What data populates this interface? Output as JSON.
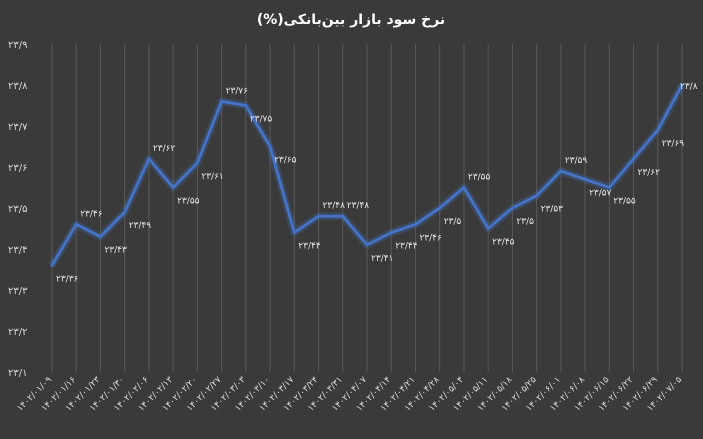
{
  "chart_data": {
    "type": "line",
    "title": "نرخ سود بازار بین‌بانکی(%)",
    "xlabel": "",
    "ylabel": "",
    "ylim": [
      23.1,
      23.9
    ],
    "yticks": [
      "۲۳/۹",
      "۲۳/۸",
      "۲۳/۷",
      "۲۳/۶",
      "۲۳/۵",
      "۲۳/۴",
      "۲۳/۳",
      "۲۳/۲",
      "۲۳/۱"
    ],
    "ytick_values": [
      23.9,
      23.8,
      23.7,
      23.6,
      23.5,
      23.4,
      23.3,
      23.2,
      23.1
    ],
    "grid": "vertical",
    "line_color": "#4472c4",
    "categories": [
      "۱۴۰۲/۰۱/۰۹",
      "۱۴۰۲/۰۱/۱۶",
      "۱۴۰۲/۰۱/۲۳",
      "۱۴۰۲/۰۱/۳۰",
      "۱۴۰۲/۰۲/۰۶",
      "۱۴۰۲/۰۲/۱۳",
      "۱۴۰۲/۰۲/۲۰",
      "۱۴۰۲/۰۲/۲۷",
      "۱۴۰۲/۰۳/۰۳",
      "۱۴۰۲/۰۳/۱۰",
      "۱۴۰۲/۰۳/۱۷",
      "۱۴۰۲/۰۳/۲۴",
      "۱۴۰۲/۰۳/۳۱",
      "۱۴۰۲/۰۴/۰۷",
      "۱۴۰۲/۰۴/۱۴",
      "۱۴۰۲/۰۴/۲۱",
      "۱۴۰۲/۰۴/۲۸",
      "۱۴۰۲/۰۵/۰۴",
      "۱۴۰۲/۰۵/۱۱",
      "۱۴۰۲/۰۵/۱۸",
      "۱۴۰۲/۰۵/۲۵",
      "۱۴۰۲/۰۶/۰۱",
      "۱۴۰۲/۰۶/۰۸",
      "۱۴۰۲/۰۶/۱۵",
      "۱۴۰۲/۰۶/۲۲",
      "۱۴۰۲/۰۶/۲۹",
      "۱۴۰۲/۰۷/۰۵"
    ],
    "series": [
      {
        "values": [
          23.36,
          23.46,
          23.43,
          23.49,
          23.62,
          23.55,
          23.61,
          23.76,
          23.75,
          23.65,
          23.44,
          23.48,
          23.48,
          23.41,
          23.44,
          23.46,
          23.5,
          23.55,
          23.45,
          23.5,
          23.53,
          23.59,
          23.57,
          23.55,
          23.62,
          23.69,
          23.8
        ],
        "labels": [
          "۲۳/۳۶",
          "۲۳/۴۶",
          "۲۳/۴۳",
          "۲۳/۴۹",
          "۲۳/۶۲",
          "۲۳/۵۵",
          "۲۳/۶۱",
          "۲۳/۷۶",
          "۲۳/۷۵",
          "۲۳/۶۵",
          "۲۳/۴۴",
          "۲۳/۴۸",
          "۲۳/۴۸",
          "۲۳/۴۱",
          "۲۳/۴۴",
          "۲۳/۴۶",
          "۲۳/۵",
          "۲۳/۵۵",
          "۲۳/۴۵",
          "۲۳/۵",
          "۲۳/۵۳",
          "۲۳/۵۹",
          "۲۳/۵۷",
          "۲۳/۵۵",
          "۲۳/۶۲",
          "۲۳/۶۹",
          "۲۳/۸"
        ]
      }
    ]
  }
}
